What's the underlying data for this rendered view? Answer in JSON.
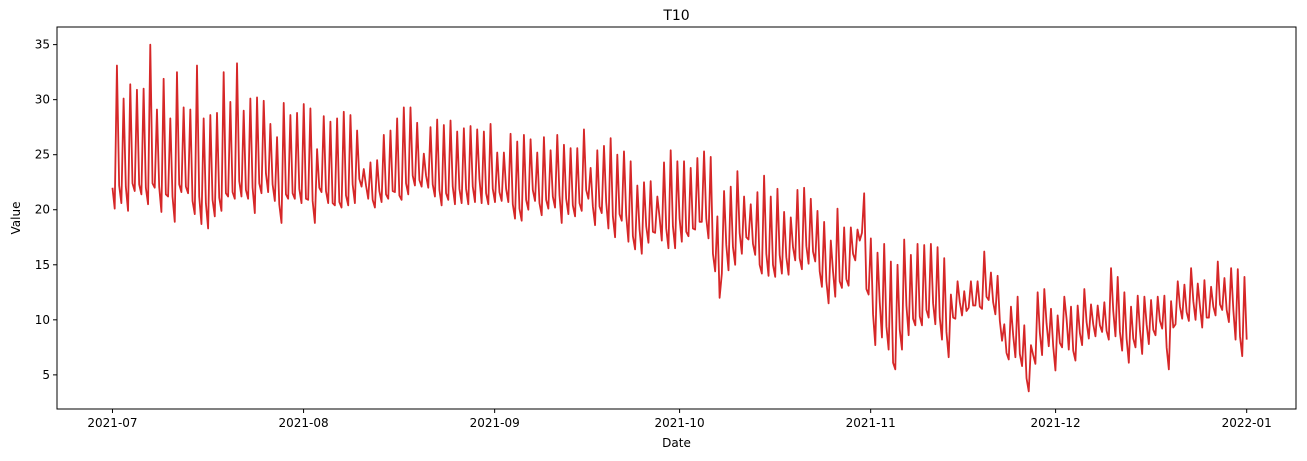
{
  "chart_data": {
    "type": "line",
    "title": "T10",
    "xlabel": "Date",
    "ylabel": "Value",
    "xlim": [
      "2021-06-22",
      "2022-01-09"
    ],
    "ylim": [
      1.9,
      36.6
    ],
    "x_ticks": [
      "2021-07",
      "2021-08",
      "2021-09",
      "2021-10",
      "2021-11",
      "2021-12",
      "2022-01"
    ],
    "y_ticks": [
      5,
      10,
      15,
      20,
      25,
      30,
      35
    ],
    "grid": false,
    "series": [
      {
        "color": "#d62728",
        "sampling": "3 points per day from 2021-07-01 to 2022-01-01",
        "x_start": "2021-07-01",
        "x_end": "2022-01-01",
        "values": [
          22.0,
          20.1,
          33.1,
          22.2,
          20.6,
          30.1,
          22.1,
          19.9,
          31.4,
          22.4,
          21.7,
          30.9,
          22.3,
          21.4,
          31.0,
          22.0,
          20.5,
          35.0,
          22.4,
          22.0,
          29.1,
          22.1,
          19.8,
          31.9,
          21.4,
          21.2,
          28.3,
          21.2,
          18.9,
          32.5,
          22.3,
          21.6,
          29.3,
          22.1,
          21.5,
          29.1,
          20.8,
          19.6,
          33.1,
          21.2,
          18.7,
          28.3,
          20.6,
          18.3,
          28.6,
          20.9,
          19.4,
          28.8,
          21.1,
          19.9,
          32.5,
          21.5,
          21.2,
          29.8,
          21.6,
          21.0,
          33.3,
          22.6,
          21.2,
          29.0,
          21.8,
          21.0,
          30.1,
          22.0,
          19.7,
          30.2,
          22.4,
          21.5,
          29.9,
          23.3,
          21.6,
          27.8,
          22.3,
          20.8,
          26.6,
          20.5,
          18.8,
          29.7,
          21.4,
          21.0,
          28.6,
          21.5,
          21.0,
          28.8,
          21.9,
          20.6,
          29.6,
          21.0,
          20.9,
          29.2,
          20.8,
          18.8,
          25.5,
          22.0,
          21.6,
          28.5,
          21.7,
          20.6,
          28.0,
          20.6,
          20.4,
          28.3,
          20.7,
          20.2,
          28.9,
          21.3,
          20.4,
          28.6,
          22.3,
          20.6,
          27.2,
          22.8,
          22.1,
          23.7,
          22.2,
          21.0,
          24.3,
          20.9,
          20.2,
          24.5,
          21.7,
          20.7,
          26.8,
          21.4,
          21.0,
          27.2,
          21.7,
          21.6,
          28.3,
          21.3,
          20.9,
          29.3,
          22.4,
          21.4,
          29.3,
          23.1,
          22.2,
          27.9,
          22.7,
          22.1,
          25.1,
          23.1,
          22.0,
          27.5,
          22.3,
          21.2,
          28.2,
          21.8,
          20.4,
          27.7,
          21.5,
          20.9,
          28.1,
          22.1,
          20.5,
          27.1,
          21.9,
          20.6,
          27.4,
          21.9,
          20.5,
          27.6,
          22.1,
          20.7,
          27.3,
          22.8,
          20.6,
          27.1,
          21.5,
          20.5,
          27.8,
          21.9,
          20.7,
          25.2,
          21.6,
          20.8,
          25.2,
          21.9,
          20.7,
          26.9,
          20.5,
          19.2,
          26.2,
          20.1,
          19.0,
          26.8,
          20.9,
          20.0,
          26.4,
          21.8,
          20.8,
          25.2,
          20.6,
          19.5,
          26.6,
          20.9,
          20.1,
          25.4,
          21.2,
          20.2,
          26.8,
          21.3,
          18.8,
          25.9,
          21.0,
          19.6,
          25.6,
          20.4,
          19.4,
          25.6,
          20.6,
          19.9,
          27.3,
          21.8,
          21.0,
          23.8,
          20.3,
          18.6,
          25.4,
          20.3,
          19.7,
          25.8,
          20.7,
          18.3,
          26.5,
          19.4,
          17.5,
          25.0,
          19.6,
          19.0,
          25.3,
          19.5,
          17.1,
          24.4,
          17.6,
          16.4,
          22.2,
          18.2,
          16.0,
          22.5,
          18.5,
          17.0,
          22.6,
          18.0,
          17.9,
          21.2,
          19.3,
          17.2,
          24.3,
          18.3,
          16.5,
          25.4,
          18.5,
          16.5,
          24.4,
          19.2,
          17.1,
          24.4,
          18.0,
          17.6,
          23.8,
          18.3,
          18.2,
          24.7,
          18.9,
          18.9,
          25.3,
          19.2,
          17.4,
          24.8,
          16.0,
          14.4,
          19.4,
          12.0,
          14.2,
          21.7,
          16.8,
          14.5,
          22.1,
          16.6,
          15.0,
          23.5,
          17.9,
          16.0,
          21.2,
          17.5,
          17.3,
          20.5,
          16.9,
          15.9,
          21.6,
          15.0,
          14.2,
          23.1,
          16.0,
          14.0,
          21.2,
          15.0,
          13.9,
          21.9,
          15.9,
          14.2,
          19.8,
          15.7,
          14.1,
          19.3,
          16.6,
          15.4,
          21.8,
          15.6,
          14.6,
          22.0,
          16.7,
          15.1,
          21.0,
          16.2,
          15.3,
          19.9,
          14.4,
          13.0,
          18.9,
          13.5,
          11.5,
          17.2,
          14.4,
          12.1,
          20.1,
          13.5,
          12.9,
          18.4,
          13.7,
          13.1,
          18.4,
          16.0,
          15.4,
          18.2,
          17.2,
          17.9,
          21.5,
          12.8,
          12.3,
          17.4,
          10.5,
          7.7,
          16.1,
          11.6,
          8.4,
          16.9,
          9.4,
          7.3,
          15.3,
          6.1,
          5.5,
          15.0,
          9.1,
          7.3,
          17.3,
          11.3,
          8.6,
          15.9,
          10.1,
          9.5,
          16.9,
          10.3,
          9.5,
          16.8,
          10.9,
          10.2,
          16.9,
          11.5,
          9.6,
          16.6,
          10.2,
          8.2,
          15.6,
          8.9,
          6.6,
          12.3,
          10.2,
          10.1,
          13.5,
          11.6,
          10.4,
          12.6,
          10.8,
          11.1,
          13.5,
          11.3,
          11.3,
          13.5,
          11.2,
          11.0,
          16.2,
          12.1,
          11.8,
          14.3,
          11.6,
          10.5,
          14.0,
          9.9,
          8.1,
          9.6,
          7.0,
          6.4,
          11.2,
          8.6,
          6.6,
          12.1,
          6.9,
          5.8,
          9.5,
          4.7,
          3.5,
          7.7,
          6.8,
          6.0,
          12.5,
          8.8,
          6.8,
          12.8,
          9.7,
          7.6,
          11.0,
          7.6,
          5.4,
          10.4,
          7.9,
          7.5,
          12.1,
          10.1,
          7.3,
          11.2,
          7.2,
          6.3,
          11.3,
          8.8,
          7.7,
          12.8,
          9.8,
          8.3,
          11.4,
          9.6,
          8.5,
          11.3,
          9.5,
          8.9,
          11.6,
          9.0,
          8.2,
          14.7,
          10.8,
          8.5,
          13.9,
          8.9,
          7.2,
          12.5,
          8.3,
          6.1,
          11.2,
          8.3,
          7.5,
          12.2,
          9.1,
          6.9,
          12.1,
          9.6,
          7.8,
          11.8,
          9.1,
          8.6,
          12.1,
          9.9,
          9.2,
          12.2,
          7.5,
          5.5,
          11.7,
          9.3,
          9.6,
          13.5,
          11.2,
          10.1,
          13.2,
          10.7,
          9.9,
          14.7,
          11.7,
          10.0,
          13.3,
          11.2,
          9.3,
          13.6,
          10.2,
          10.2,
          13.0,
          11.2,
          10.4,
          15.3,
          11.4,
          10.9,
          13.8,
          10.9,
          9.8,
          14.7,
          10.9,
          8.2,
          14.6,
          8.5,
          6.7,
          13.9,
          8.2
        ]
      }
    ]
  }
}
